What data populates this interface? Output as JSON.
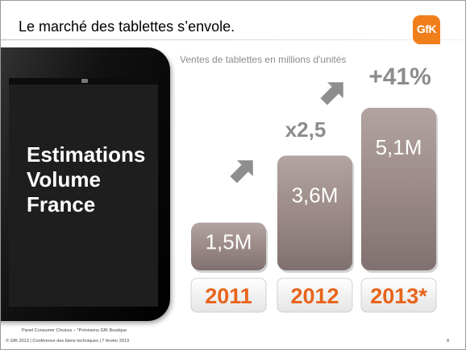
{
  "slide": {
    "title": "Le marché des tablettes s’envole.",
    "logo_text": "GfK",
    "tablet_text": [
      "Estimations",
      "Volume",
      "France"
    ],
    "footer_source": "Panel Consumer Choices – *Prévisions GfK Boutique",
    "footer_copyright": "© GfK 2013 | Conférence des biens techniques | 7 février 2013",
    "page_number": "8"
  },
  "colors": {
    "bar_fill": "#9b8a87",
    "bar_text": "#ffffff",
    "year_text": "#e8641b",
    "growth_text": "#8c8c8c",
    "arrow": "#8e8e8e",
    "logo": "#f07e1b"
  },
  "chart_data": {
    "type": "bar",
    "title": "Ventes de tablettes en millions d'unités",
    "categories": [
      "2011",
      "2012",
      "2013*"
    ],
    "values": [
      1.5,
      3.6,
      5.1
    ],
    "value_labels": [
      "1,5M",
      "3,6M",
      "5,1M"
    ],
    "ylim": [
      0,
      5.1
    ],
    "grid": false,
    "annotations": [
      {
        "text": "x2,5",
        "between": [
          "2011",
          "2012"
        ]
      },
      {
        "text": "+41%",
        "between": [
          "2012",
          "2013*"
        ]
      }
    ]
  }
}
